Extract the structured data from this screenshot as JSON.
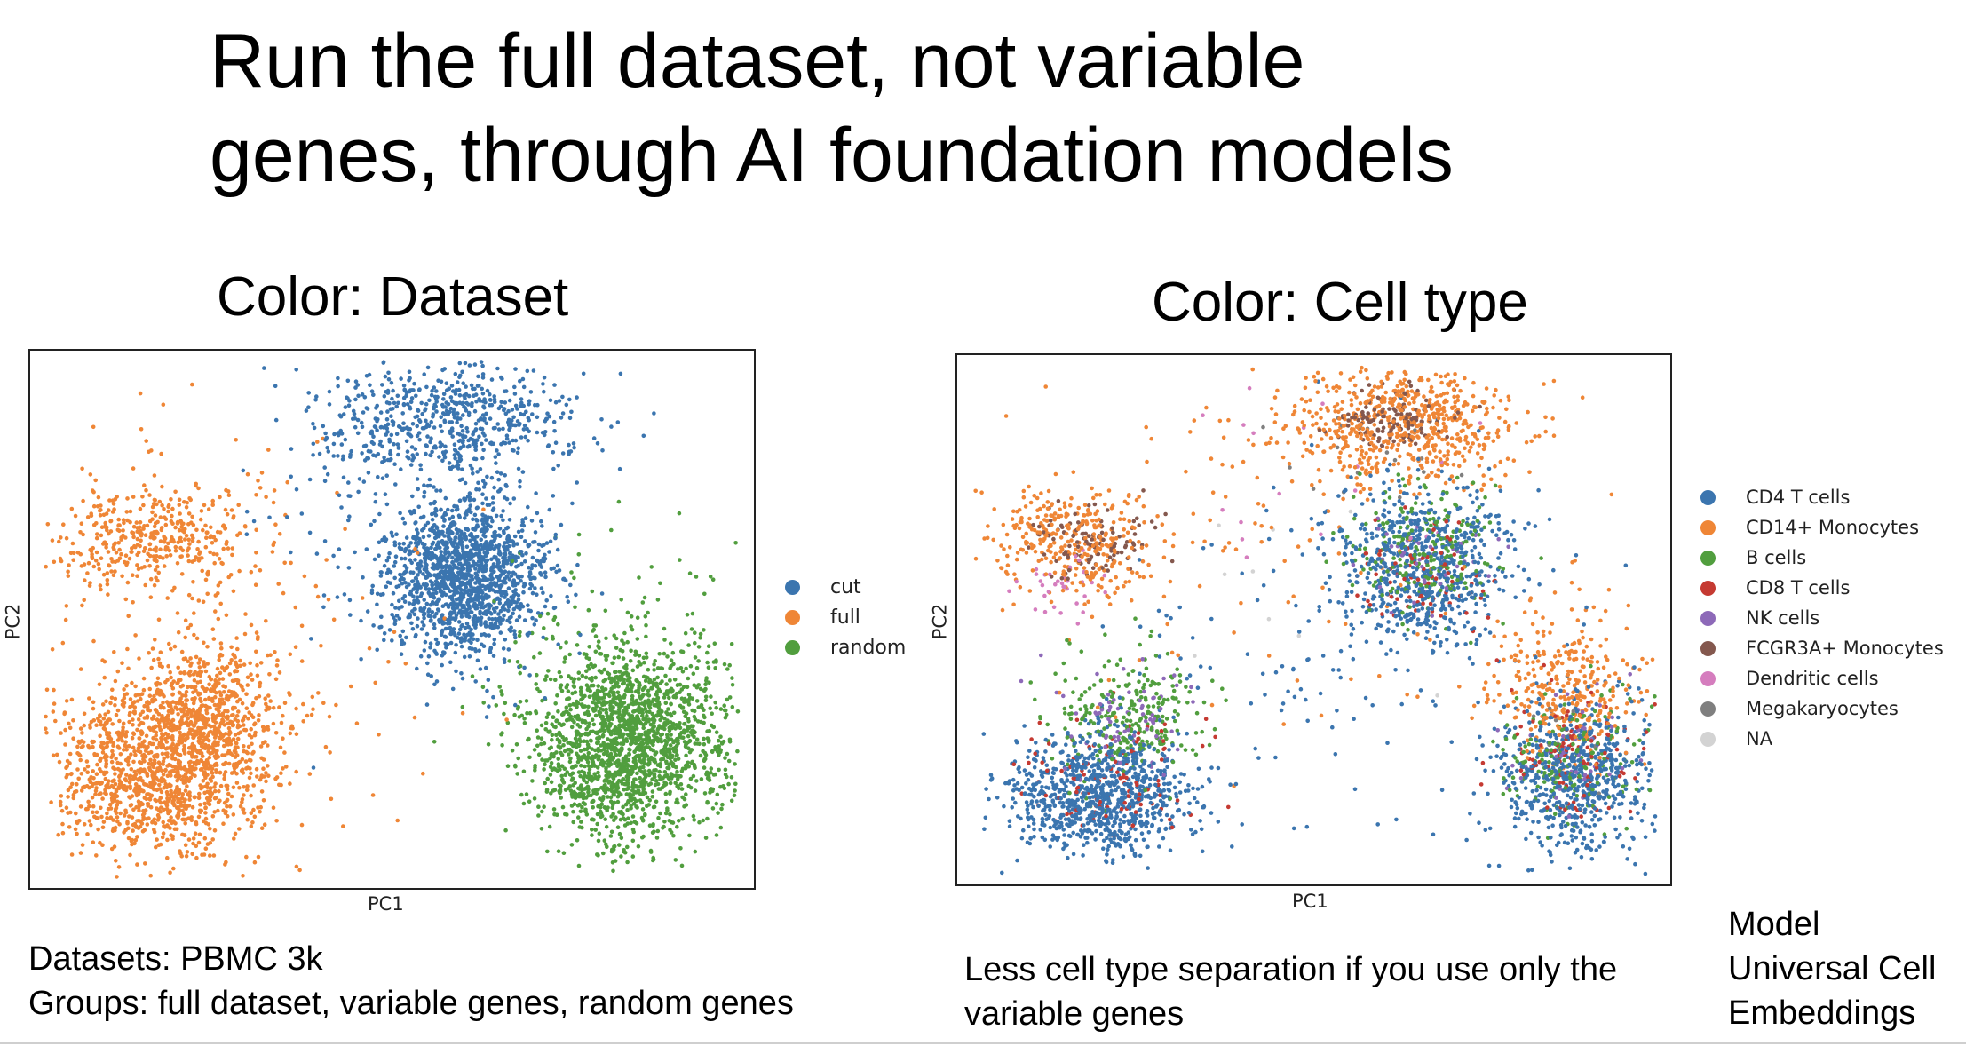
{
  "slide": {
    "title_line1": "Run the full dataset, not variable",
    "title_line2": "genes, through AI foundation models"
  },
  "notes": {
    "left_line1": "Datasets: PBMC 3k",
    "left_line2": "Groups: full dataset, variable genes, random genes",
    "middle_line1": "Less cell type separation if you use only the",
    "middle_line2": "variable genes",
    "right_line1": "Model",
    "right_line2": "Universal Cell",
    "right_line3": "Embeddings"
  },
  "chart_data": [
    {
      "type": "scatter",
      "title": "Color: Dataset",
      "xlabel": "PC1",
      "ylabel": "PC2",
      "ticks_shown": false,
      "legend_position": "right",
      "series": [
        {
          "name": "cut",
          "color": "#3b75af",
          "clusters": [
            {
              "cx": 0.6,
              "cy": 0.58,
              "sx": 0.055,
              "sy": 0.075,
              "n": 1500
            },
            {
              "cx": 0.57,
              "cy": 0.87,
              "sx": 0.09,
              "sy": 0.06,
              "n": 650
            },
            {
              "cx": 0.5,
              "cy": 0.7,
              "sx": 0.12,
              "sy": 0.16,
              "n": 90
            }
          ]
        },
        {
          "name": "full",
          "color": "#ef8636",
          "clusters": [
            {
              "cx": 0.18,
              "cy": 0.22,
              "sx": 0.07,
              "sy": 0.08,
              "n": 1300
            },
            {
              "cx": 0.25,
              "cy": 0.32,
              "sx": 0.05,
              "sy": 0.06,
              "n": 450
            },
            {
              "cx": 0.17,
              "cy": 0.65,
              "sx": 0.065,
              "sy": 0.05,
              "n": 380
            },
            {
              "cx": 0.23,
              "cy": 0.5,
              "sx": 0.16,
              "sy": 0.18,
              "n": 220
            }
          ]
        },
        {
          "name": "random",
          "color": "#519e3e",
          "clusters": [
            {
              "cx": 0.83,
              "cy": 0.27,
              "sx": 0.065,
              "sy": 0.09,
              "n": 1700
            },
            {
              "cx": 0.82,
              "cy": 0.35,
              "sx": 0.09,
              "sy": 0.14,
              "n": 250
            }
          ]
        }
      ]
    },
    {
      "type": "scatter",
      "title": "Color: Cell type",
      "xlabel": "PC1",
      "ylabel": "PC2",
      "ticks_shown": false,
      "legend_position": "right",
      "series": [
        {
          "name": "CD4 T cells",
          "color": "#3b75af",
          "clusters": [
            {
              "cx": 0.2,
              "cy": 0.17,
              "sx": 0.065,
              "sy": 0.055,
              "n": 900
            },
            {
              "cx": 0.65,
              "cy": 0.6,
              "sx": 0.06,
              "sy": 0.08,
              "n": 650
            },
            {
              "cx": 0.87,
              "cy": 0.2,
              "sx": 0.06,
              "sy": 0.08,
              "n": 650
            },
            {
              "cx": 0.55,
              "cy": 0.45,
              "sx": 0.18,
              "sy": 0.2,
              "n": 150
            }
          ]
        },
        {
          "name": "CD14+ Monocytes",
          "color": "#ef8636",
          "clusters": [
            {
              "cx": 0.63,
              "cy": 0.87,
              "sx": 0.08,
              "sy": 0.055,
              "n": 650
            },
            {
              "cx": 0.16,
              "cy": 0.65,
              "sx": 0.06,
              "sy": 0.05,
              "n": 320
            },
            {
              "cx": 0.85,
              "cy": 0.37,
              "sx": 0.05,
              "sy": 0.07,
              "n": 320
            },
            {
              "cx": 0.45,
              "cy": 0.65,
              "sx": 0.2,
              "sy": 0.18,
              "n": 120
            }
          ]
        },
        {
          "name": "B cells",
          "color": "#519e3e",
          "clusters": [
            {
              "cx": 0.24,
              "cy": 0.32,
              "sx": 0.05,
              "sy": 0.06,
              "n": 260
            },
            {
              "cx": 0.66,
              "cy": 0.63,
              "sx": 0.05,
              "sy": 0.06,
              "n": 220
            },
            {
              "cx": 0.86,
              "cy": 0.24,
              "sx": 0.05,
              "sy": 0.06,
              "n": 180
            }
          ]
        },
        {
          "name": "CD8 T cells",
          "color": "#c53a32",
          "clusters": [
            {
              "cx": 0.21,
              "cy": 0.2,
              "sx": 0.06,
              "sy": 0.06,
              "n": 110
            },
            {
              "cx": 0.65,
              "cy": 0.58,
              "sx": 0.05,
              "sy": 0.06,
              "n": 80
            },
            {
              "cx": 0.86,
              "cy": 0.25,
              "sx": 0.05,
              "sy": 0.06,
              "n": 110
            }
          ]
        },
        {
          "name": "NK cells",
          "color": "#8d69b8",
          "clusters": [
            {
              "cx": 0.24,
              "cy": 0.31,
              "sx": 0.05,
              "sy": 0.05,
              "n": 80
            },
            {
              "cx": 0.66,
              "cy": 0.6,
              "sx": 0.05,
              "sy": 0.05,
              "n": 50
            },
            {
              "cx": 0.86,
              "cy": 0.26,
              "sx": 0.05,
              "sy": 0.06,
              "n": 50
            }
          ]
        },
        {
          "name": "FCGR3A+ Monocytes",
          "color": "#84584e",
          "clusters": [
            {
              "cx": 0.61,
              "cy": 0.88,
              "sx": 0.035,
              "sy": 0.03,
              "n": 130
            },
            {
              "cx": 0.19,
              "cy": 0.65,
              "sx": 0.04,
              "sy": 0.035,
              "n": 110
            }
          ]
        },
        {
          "name": "Dendritic cells",
          "color": "#d57dbe",
          "clusters": [
            {
              "cx": 0.15,
              "cy": 0.57,
              "sx": 0.03,
              "sy": 0.03,
              "n": 35
            },
            {
              "cx": 0.55,
              "cy": 0.75,
              "sx": 0.1,
              "sy": 0.1,
              "n": 20
            }
          ]
        },
        {
          "name": "Megakaryocytes",
          "color": "#7f7f7f",
          "clusters": [
            {
              "cx": 0.6,
              "cy": 0.82,
              "sx": 0.06,
              "sy": 0.05,
              "n": 18
            },
            {
              "cx": 0.86,
              "cy": 0.28,
              "sx": 0.04,
              "sy": 0.05,
              "n": 12
            }
          ]
        },
        {
          "name": "NA",
          "color": "#d3d3d3",
          "clusters": [
            {
              "cx": 0.45,
              "cy": 0.6,
              "sx": 0.12,
              "sy": 0.12,
              "n": 10
            }
          ]
        }
      ]
    }
  ]
}
